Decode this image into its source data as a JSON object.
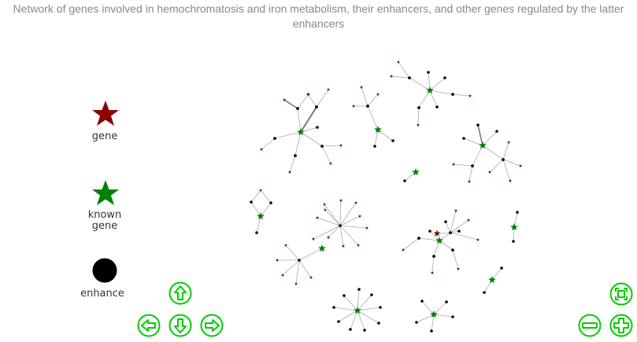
{
  "title": "Network of genes involved in hemochromatosis and iron metabolism, their enhancers, and other genes regulated by the latter enhancers",
  "legend": {
    "gene": "gene",
    "known_gene": "known\ngene",
    "enhancer": "enhance"
  },
  "colors": {
    "gene": "#8b0000",
    "known_gene": "#008000",
    "enhancer": "#000000",
    "edge": "#aaaaaa",
    "nav_button": "#00cc00"
  },
  "icons": {
    "up": "arrow-up-icon",
    "down": "arrow-down-icon",
    "left": "arrow-left-icon",
    "right": "arrow-right-icon",
    "fit": "zoom-fit-icon",
    "zoom_out": "zoom-out-icon",
    "zoom_in": "zoom-in-icon"
  }
}
